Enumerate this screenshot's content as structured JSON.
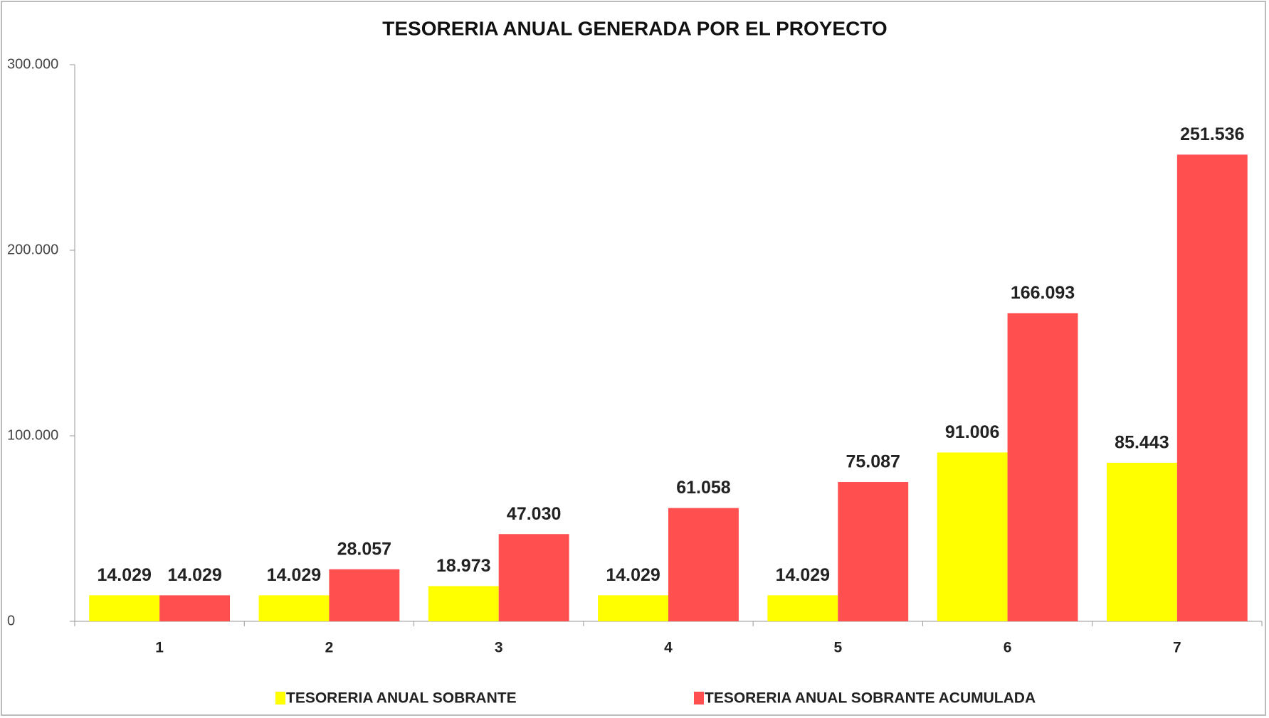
{
  "chart_data": {
    "type": "bar",
    "title": "TESORERIA  ANUAL GENERADA POR  EL PROYECTO",
    "categories": [
      "1",
      "2",
      "3",
      "4",
      "5",
      "6",
      "7"
    ],
    "series": [
      {
        "name": "TESORERIA ANUAL SOBRANTE",
        "color": "#ffff00",
        "values": [
          14029,
          14029,
          18973,
          14029,
          14029,
          91006,
          85443
        ],
        "value_labels": [
          "14.029",
          "14.029",
          "18.973",
          "14.029",
          "14.029",
          "91.006",
          "85.443"
        ]
      },
      {
        "name": "TESORERIA ANUAL SOBRANTE ACUMULADA",
        "color": "#ff4f4f",
        "values": [
          14029,
          28057,
          47030,
          61058,
          75087,
          166093,
          251536
        ],
        "value_labels": [
          "14.029",
          "28.057",
          "47.030",
          "61.058",
          "75.087",
          "166.093",
          "251.536"
        ]
      }
    ],
    "ylim": [
      0,
      300000
    ],
    "yticks": [
      0,
      {
        "value": 100000,
        "label": "100.000"
      },
      {
        "value": 200000,
        "label": "200.000"
      },
      {
        "value": 300000,
        "label": "300.000"
      }
    ],
    "grid": false,
    "legend": "bottom"
  }
}
